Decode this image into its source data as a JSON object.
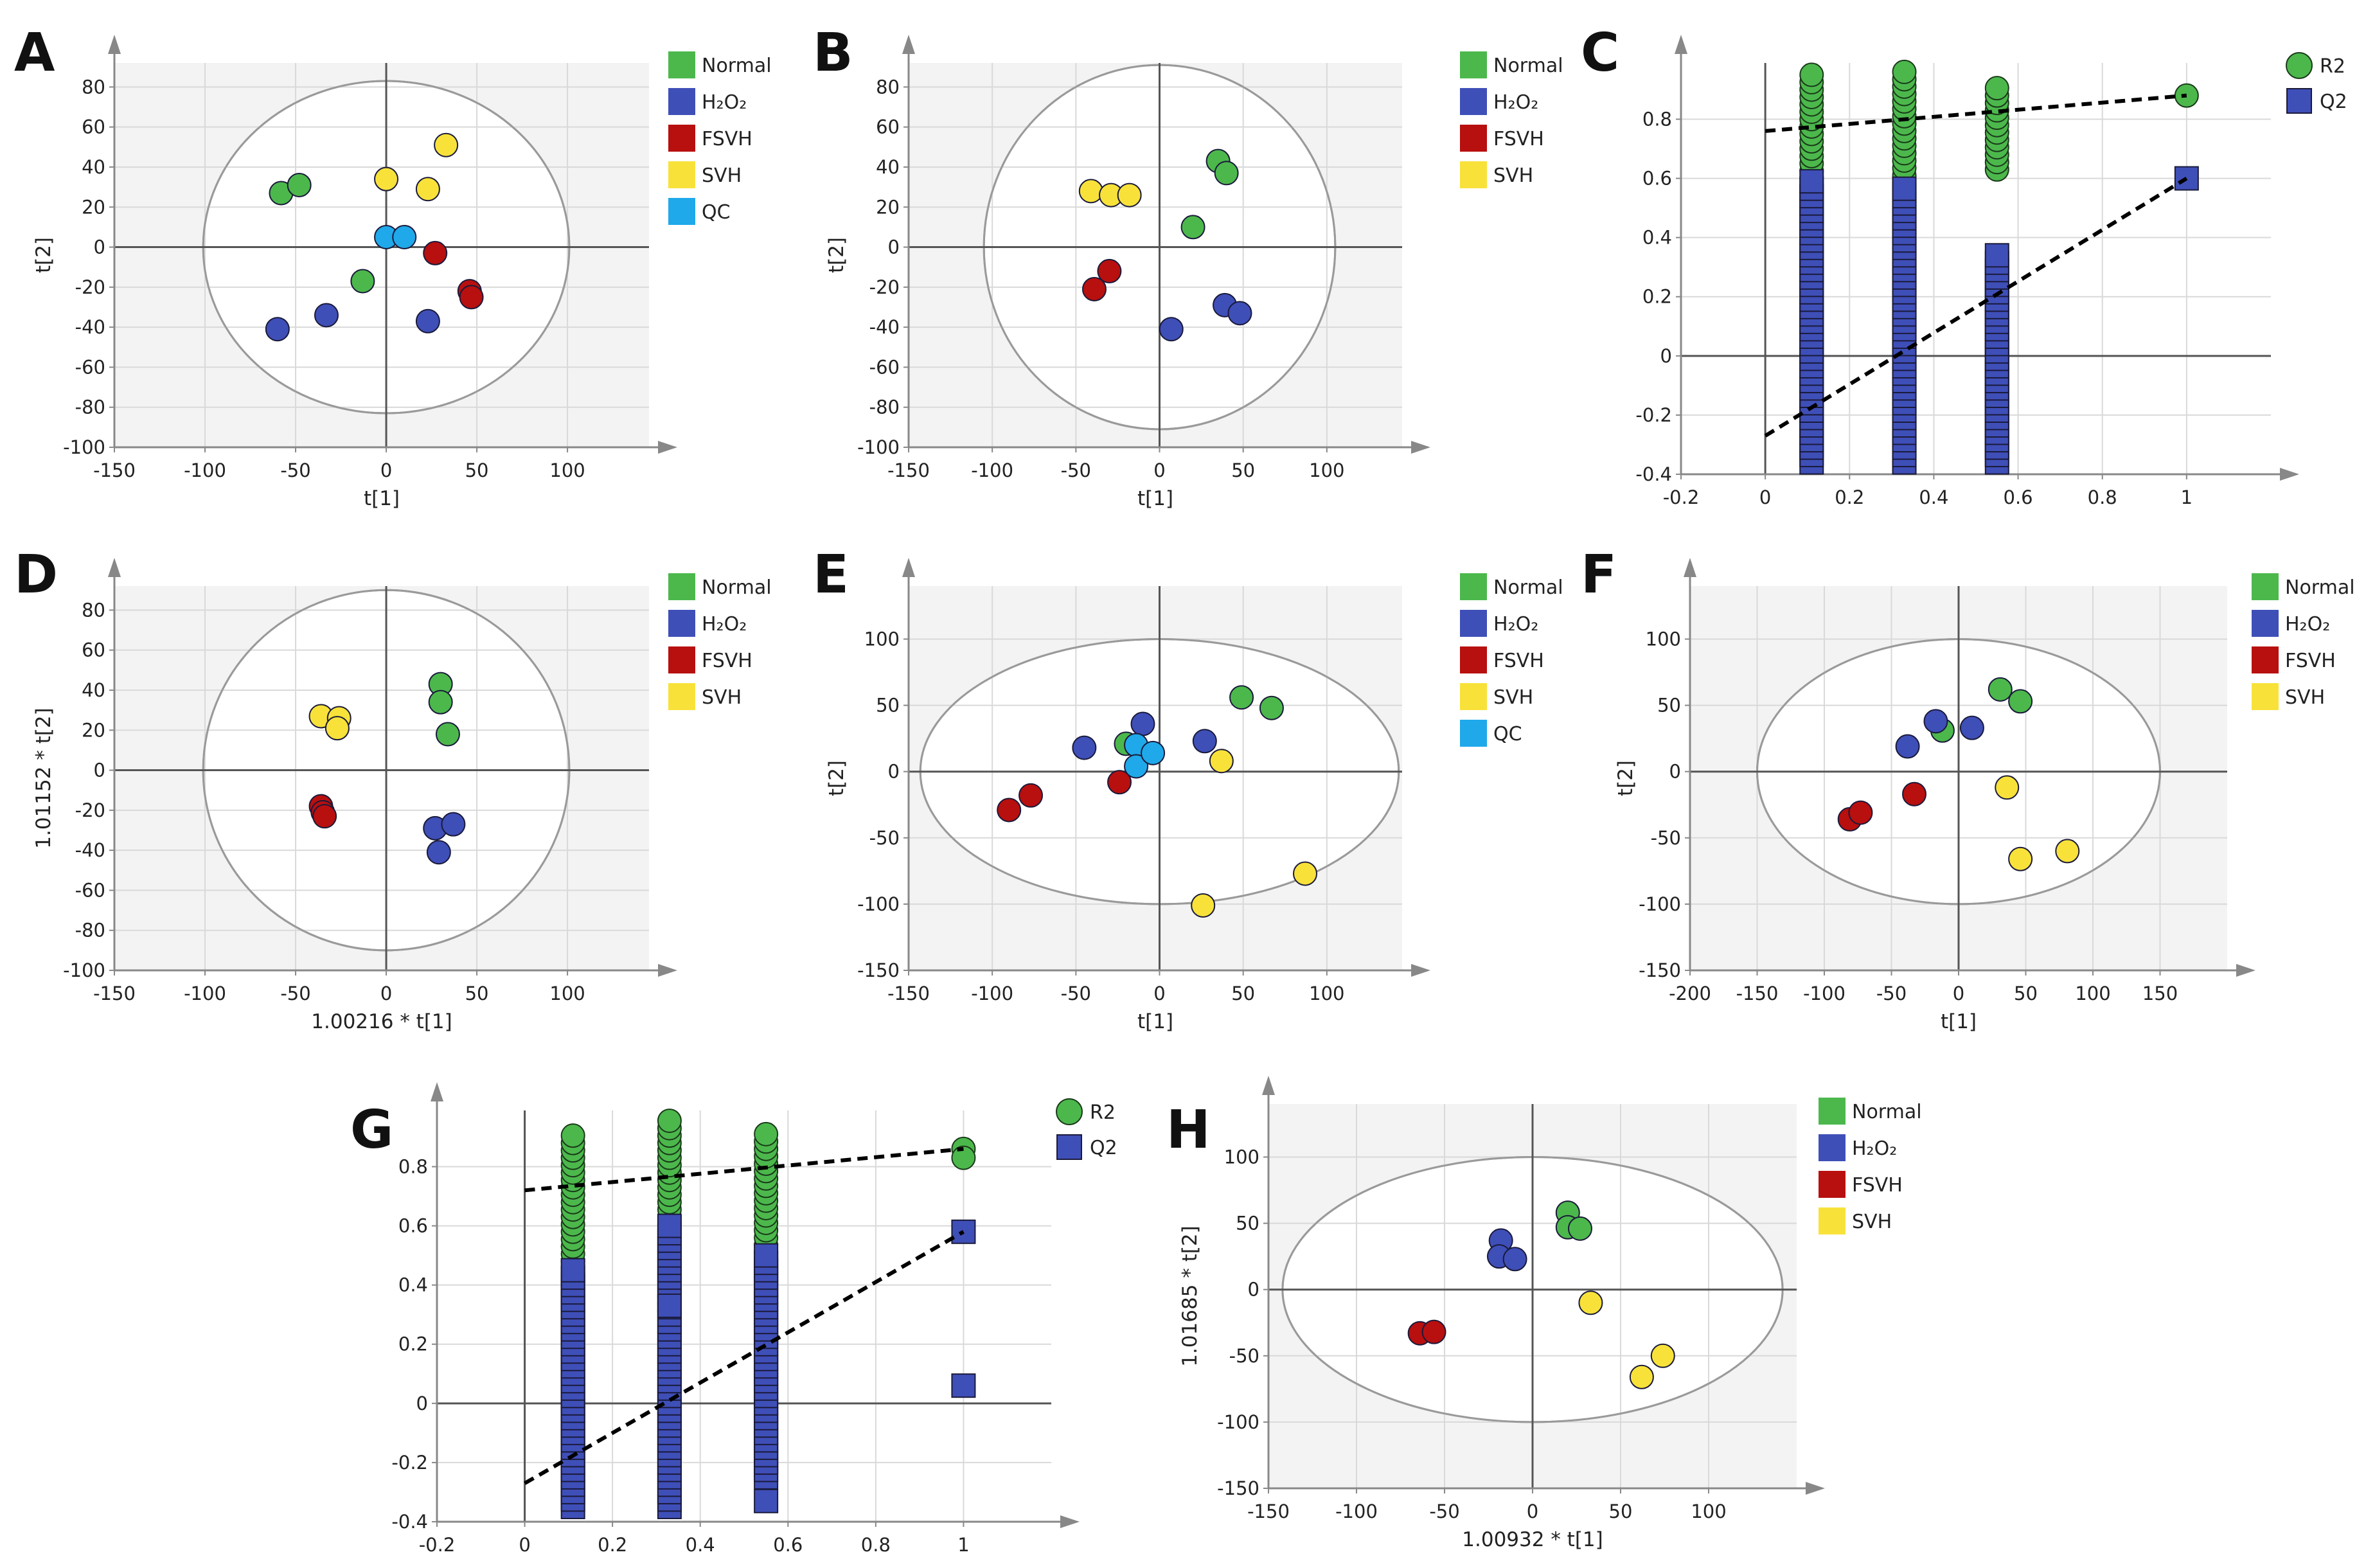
{
  "colors": {
    "normal": "#4cb84c",
    "h2o2": "#3f4fb8",
    "fsvh": "#b80f0f",
    "svh": "#f8e23a",
    "qc": "#1fa9ea",
    "r2": "#4cb84c",
    "q2": "#3f4fb8",
    "plot_background": "#f3f3f3",
    "grid": "#d9d9d9"
  },
  "chart_data": [
    {
      "panel": "A",
      "type": "scatter",
      "xlabel": "t[1]",
      "ylabel": "t[2]",
      "xlim": [
        -150,
        145
      ],
      "ylim": [
        -100,
        92
      ],
      "xticks": [
        -150,
        -100,
        -50,
        0,
        50,
        100
      ],
      "yticks": [
        -100,
        -80,
        -60,
        -40,
        -20,
        0,
        20,
        40,
        60,
        80
      ],
      "ellipse": {
        "rx": 101,
        "ry": 83
      },
      "legend": [
        "Normal",
        "H₂O₂",
        "FSVH",
        "SVH",
        "QC"
      ],
      "series": [
        {
          "name": "Normal",
          "color_key": "normal",
          "points": [
            [
              -58,
              27
            ],
            [
              -48,
              31
            ],
            [
              -13,
              -17
            ]
          ]
        },
        {
          "name": "H₂O₂",
          "color_key": "h2o2",
          "points": [
            [
              -60,
              -41
            ],
            [
              -33,
              -34
            ],
            [
              23,
              -37
            ]
          ]
        },
        {
          "name": "FSVH",
          "color_key": "fsvh",
          "points": [
            [
              27,
              -3
            ],
            [
              46,
              -22
            ],
            [
              47,
              -25
            ]
          ]
        },
        {
          "name": "SVH",
          "color_key": "svh",
          "points": [
            [
              0,
              34
            ],
            [
              23,
              29
            ],
            [
              33,
              51
            ]
          ]
        },
        {
          "name": "QC",
          "color_key": "qc",
          "points": [
            [
              0,
              5
            ],
            [
              10,
              5
            ]
          ]
        }
      ]
    },
    {
      "panel": "B",
      "type": "scatter",
      "xlabel": "t[1]",
      "ylabel": "t[2]",
      "xlim": [
        -150,
        145
      ],
      "ylim": [
        -100,
        92
      ],
      "xticks": [
        -150,
        -100,
        -50,
        0,
        50,
        100
      ],
      "yticks": [
        -100,
        -80,
        -60,
        -40,
        -20,
        0,
        20,
        40,
        60,
        80
      ],
      "ellipse": {
        "rx": 105,
        "ry": 91
      },
      "legend": [
        "Normal",
        "H₂O₂",
        "FSVH",
        "SVH"
      ],
      "series": [
        {
          "name": "Normal",
          "color_key": "normal",
          "points": [
            [
              20,
              10
            ],
            [
              35,
              43
            ],
            [
              40,
              37
            ]
          ]
        },
        {
          "name": "H₂O₂",
          "color_key": "h2o2",
          "points": [
            [
              7,
              -41
            ],
            [
              39,
              -29
            ],
            [
              48,
              -33
            ]
          ]
        },
        {
          "name": "FSVH",
          "color_key": "fsvh",
          "points": [
            [
              -39,
              -21
            ],
            [
              -30,
              -12
            ]
          ]
        },
        {
          "name": "SVH",
          "color_key": "svh",
          "points": [
            [
              -41,
              28
            ],
            [
              -29,
              26
            ],
            [
              -18,
              26
            ]
          ]
        }
      ]
    },
    {
      "panel": "C",
      "type": "permutation",
      "xlim": [
        -0.2,
        1.2
      ],
      "ylim": [
        -0.4,
        0.99
      ],
      "xticks": [
        -0.2,
        0,
        0.2,
        0.4,
        0.6,
        0.8,
        1
      ],
      "yticks": [
        -0.4,
        -0.2,
        0,
        0.2,
        0.4,
        0.6,
        0.8
      ],
      "legend": [
        "R2",
        "Q2"
      ],
      "r2_columns": [
        {
          "x": 0.11,
          "min": 0.55,
          "max": 0.97
        },
        {
          "x": 0.33,
          "min": 0.51,
          "max": 0.97
        },
        {
          "x": 0.55,
          "min": 0.63,
          "max": 0.92
        }
      ],
      "q2_columns": [
        {
          "x": 0.11,
          "min": -0.36,
          "max": 0.59
        },
        {
          "x": 0.33,
          "min": -0.36,
          "max": 0.58
        },
        {
          "x": 0.55,
          "min": -0.36,
          "max": 0.36
        }
      ],
      "r2_final": [
        [
          1,
          0.88
        ]
      ],
      "q2_final": [
        [
          1,
          0.6
        ]
      ],
      "r2_intercept_line": [
        [
          0,
          0.76
        ],
        [
          1,
          0.88
        ]
      ],
      "q2_intercept_line": [
        [
          0,
          -0.27
        ],
        [
          1,
          0.6
        ]
      ]
    },
    {
      "panel": "D",
      "type": "scatter",
      "xlabel": "1.00216 * t[1]",
      "ylabel": "1.01152 * t[2]",
      "xlim": [
        -150,
        145
      ],
      "ylim": [
        -100,
        92
      ],
      "xticks": [
        -150,
        -100,
        -50,
        0,
        50,
        100
      ],
      "yticks": [
        -100,
        -80,
        -60,
        -40,
        -20,
        0,
        20,
        40,
        60,
        80
      ],
      "ellipse": {
        "rx": 101,
        "ry": 90
      },
      "legend": [
        "Normal",
        "H₂O₂",
        "FSVH",
        "SVH"
      ],
      "series": [
        {
          "name": "Normal",
          "color_key": "normal",
          "points": [
            [
              30,
              43
            ],
            [
              30,
              34
            ],
            [
              34,
              18
            ]
          ]
        },
        {
          "name": "H₂O₂",
          "color_key": "h2o2",
          "points": [
            [
              27,
              -29
            ],
            [
              37,
              -27
            ],
            [
              29,
              -41
            ]
          ]
        },
        {
          "name": "FSVH",
          "color_key": "fsvh",
          "points": [
            [
              -36,
              -18
            ],
            [
              -35,
              -21
            ],
            [
              -34,
              -23
            ]
          ]
        },
        {
          "name": "SVH",
          "color_key": "svh",
          "points": [
            [
              -36,
              27
            ],
            [
              -26,
              26
            ],
            [
              -27,
              21
            ]
          ]
        }
      ]
    },
    {
      "panel": "E",
      "type": "scatter",
      "xlabel": "t[1]",
      "ylabel": "t[2]",
      "xlim": [
        -150,
        145
      ],
      "ylim": [
        -150,
        140
      ],
      "xticks": [
        -150,
        -100,
        -50,
        0,
        50,
        100
      ],
      "yticks": [
        -150,
        -100,
        -50,
        0,
        50,
        100
      ],
      "ellipse": {
        "rx": 143,
        "ry": 100
      },
      "legend": [
        "Normal",
        "H₂O₂",
        "FSVH",
        "SVH",
        "QC"
      ],
      "series": [
        {
          "name": "Normal",
          "color_key": "normal",
          "points": [
            [
              -20,
              21
            ],
            [
              49,
              56
            ],
            [
              67,
              48
            ]
          ]
        },
        {
          "name": "H₂O₂",
          "color_key": "h2o2",
          "points": [
            [
              -45,
              18
            ],
            [
              -10,
              36
            ],
            [
              27,
              23
            ]
          ]
        },
        {
          "name": "FSVH",
          "color_key": "fsvh",
          "points": [
            [
              -90,
              -29
            ],
            [
              -77,
              -18
            ],
            [
              -24,
              -8
            ]
          ]
        },
        {
          "name": "SVH",
          "color_key": "svh",
          "points": [
            [
              37,
              8
            ],
            [
              87,
              -77
            ],
            [
              26,
              -101
            ]
          ]
        },
        {
          "name": "QC",
          "color_key": "qc",
          "points": [
            [
              -14,
              20
            ],
            [
              -14,
              4
            ],
            [
              -4,
              14
            ]
          ]
        }
      ]
    },
    {
      "panel": "F",
      "type": "scatter",
      "xlabel": "t[1]",
      "ylabel": "t[2]",
      "xlim": [
        -200,
        200
      ],
      "ylim": [
        -150,
        140
      ],
      "xticks": [
        -200,
        -150,
        -100,
        -50,
        0,
        50,
        100,
        150
      ],
      "yticks": [
        -150,
        -100,
        -50,
        0,
        50,
        100
      ],
      "ellipse": {
        "rx": 150,
        "ry": 100
      },
      "legend": [
        "Normal",
        "H₂O₂",
        "FSVH",
        "SVH"
      ],
      "series": [
        {
          "name": "Normal",
          "color_key": "normal",
          "points": [
            [
              -12,
              31
            ],
            [
              31,
              62
            ],
            [
              46,
              53
            ]
          ]
        },
        {
          "name": "H₂O₂",
          "color_key": "h2o2",
          "points": [
            [
              -38,
              19
            ],
            [
              -17,
              38
            ],
            [
              10,
              33
            ]
          ]
        },
        {
          "name": "FSVH",
          "color_key": "fsvh",
          "points": [
            [
              -81,
              -36
            ],
            [
              -73,
              -31
            ],
            [
              -33,
              -17
            ]
          ]
        },
        {
          "name": "SVH",
          "color_key": "svh",
          "points": [
            [
              36,
              -12
            ],
            [
              46,
              -66
            ],
            [
              81,
              -60
            ]
          ]
        }
      ]
    },
    {
      "panel": "G",
      "type": "permutation",
      "xlim": [
        -0.2,
        1.2
      ],
      "ylim": [
        -0.4,
        0.99
      ],
      "xticks": [
        -0.2,
        0,
        0.2,
        0.4,
        0.6,
        0.8,
        1
      ],
      "yticks": [
        -0.4,
        -0.2,
        0,
        0.2,
        0.4,
        0.6,
        0.8
      ],
      "legend": [
        "R2",
        "Q2"
      ],
      "r2_columns": [
        {
          "x": 0.11,
          "min": 0.43,
          "max": 0.91
        },
        {
          "x": 0.33,
          "min": 0.48,
          "max": 0.96
        },
        {
          "x": 0.55,
          "min": 0.46,
          "max": 0.91
        }
      ],
      "q2_columns": [
        {
          "x": 0.11,
          "min": -0.35,
          "max": 0.45
        },
        {
          "x": 0.33,
          "min": -0.35,
          "max": 0.6
        },
        {
          "x": 0.55,
          "min": -0.25,
          "max": 0.5
        }
      ],
      "q2_extra": [
        [
          0.33,
          0.33
        ],
        [
          0.55,
          -0.33
        ]
      ],
      "r2_final": [
        [
          1,
          0.86
        ],
        [
          1,
          0.83
        ]
      ],
      "q2_final": [
        [
          1,
          0.58
        ],
        [
          1,
          0.06
        ]
      ],
      "r2_intercept_line": [
        [
          0,
          0.72
        ],
        [
          1,
          0.86
        ]
      ],
      "q2_intercept_line": [
        [
          0,
          -0.27
        ],
        [
          1,
          0.58
        ]
      ]
    },
    {
      "panel": "H",
      "type": "scatter",
      "xlabel": "1.00932 * t[1]",
      "ylabel": "1.01685 * t[2]",
      "xlim": [
        -150,
        150
      ],
      "ylim": [
        -150,
        140
      ],
      "xticks": [
        -150,
        -100,
        -50,
        0,
        50,
        100
      ],
      "yticks": [
        -150,
        -100,
        -50,
        0,
        50,
        100
      ],
      "ellipse": {
        "rx": 142,
        "ry": 100
      },
      "legend": [
        "Normal",
        "H₂O₂",
        "FSVH",
        "SVH"
      ],
      "series": [
        {
          "name": "Normal",
          "color_key": "normal",
          "points": [
            [
              20,
              58
            ],
            [
              20,
              47
            ],
            [
              27,
              46
            ]
          ]
        },
        {
          "name": "H₂O₂",
          "color_key": "h2o2",
          "points": [
            [
              -18,
              37
            ],
            [
              -19,
              25
            ],
            [
              -10,
              23
            ]
          ]
        },
        {
          "name": "FSVH",
          "color_key": "fsvh",
          "points": [
            [
              -64,
              -33
            ],
            [
              -56,
              -32
            ]
          ]
        },
        {
          "name": "SVH",
          "color_key": "svh",
          "points": [
            [
              33,
              -10
            ],
            [
              62,
              -66
            ],
            [
              74,
              -50
            ]
          ]
        }
      ]
    }
  ]
}
